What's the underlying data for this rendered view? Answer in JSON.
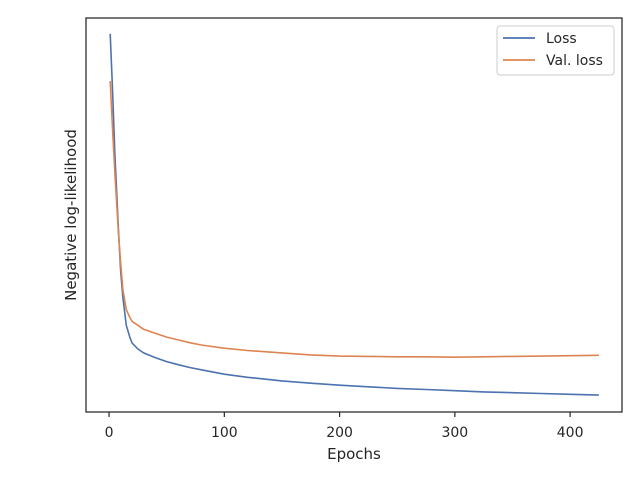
{
  "chart_data": {
    "type": "line",
    "title": "",
    "xlabel": "Epochs",
    "ylabel": "Negative log-likelihood",
    "xlim": [
      -20,
      445
    ],
    "ylim": [
      0,
      1
    ],
    "xticks": [
      0,
      100,
      200,
      300,
      400
    ],
    "y_tick_labels_shown": false,
    "grid": false,
    "legend_position": "top-right",
    "series": [
      {
        "name": "Loss",
        "color": "#4c72b0",
        "x": [
          1,
          3,
          5,
          8,
          10,
          12,
          15,
          18,
          20,
          25,
          30,
          40,
          50,
          60,
          70,
          80,
          100,
          120,
          150,
          175,
          200,
          225,
          250,
          275,
          300,
          325,
          350,
          375,
          400,
          425
        ],
        "y": [
          0.96,
          0.82,
          0.66,
          0.47,
          0.36,
          0.29,
          0.22,
          0.19,
          0.175,
          0.16,
          0.15,
          0.138,
          0.128,
          0.12,
          0.113,
          0.107,
          0.096,
          0.088,
          0.079,
          0.073,
          0.068,
          0.064,
          0.06,
          0.057,
          0.054,
          0.051,
          0.049,
          0.047,
          0.045,
          0.043
        ]
      },
      {
        "name": "Val. loss",
        "color": "#dd8452",
        "x": [
          1,
          3,
          5,
          8,
          10,
          12,
          15,
          18,
          20,
          25,
          30,
          40,
          50,
          60,
          70,
          80,
          100,
          120,
          150,
          175,
          200,
          225,
          250,
          275,
          300,
          325,
          350,
          375,
          400,
          425
        ],
        "y": [
          0.84,
          0.72,
          0.61,
          0.46,
          0.38,
          0.31,
          0.26,
          0.24,
          0.23,
          0.22,
          0.21,
          0.2,
          0.19,
          0.183,
          0.176,
          0.17,
          0.162,
          0.156,
          0.15,
          0.145,
          0.142,
          0.141,
          0.14,
          0.14,
          0.139,
          0.14,
          0.141,
          0.142,
          0.143,
          0.144
        ]
      }
    ]
  }
}
